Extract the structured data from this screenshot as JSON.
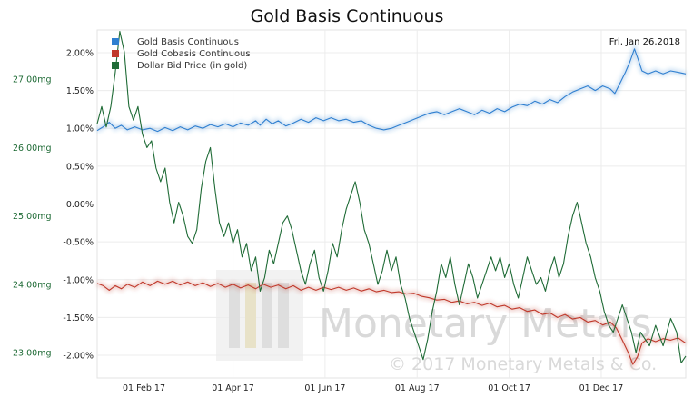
{
  "chart_data": {
    "type": "line",
    "title": "Gold Basis Continuous",
    "date_label": "Fri, Jan 26,2018",
    "watermark": {
      "brand": "Monetary Metals",
      "copyright": "© 2017 Monetary Metals & Co."
    },
    "x_ticks": [
      "01 Feb 17",
      "01 Apr 17",
      "01 Jun 17",
      "01 Aug 17",
      "01 Oct 17",
      "01 Dec 17"
    ],
    "x_tick_days": [
      31,
      90,
      151,
      212,
      273,
      334
    ],
    "x_range": [
      0,
      390
    ],
    "right_axis": {
      "unit": "%",
      "ylim": [
        -2.3,
        2.3
      ],
      "ticks": [
        "2.00%",
        "1.50%",
        "1.00%",
        "0.50%",
        "0.00%",
        "-0.50%",
        "-1.00%",
        "-1.50%",
        "-2.00%"
      ],
      "tick_values": [
        2.0,
        1.5,
        1.0,
        0.5,
        0.0,
        -0.5,
        -1.0,
        -1.5,
        -2.0
      ]
    },
    "left_axis": {
      "unit": "mg",
      "ylim": [
        22.63,
        27.72
      ],
      "ticks": [
        "27.00mg",
        "26.00mg",
        "25.00mg",
        "24.00mg",
        "23.00mg"
      ],
      "tick_values": [
        27.0,
        26.0,
        25.0,
        24.0,
        23.0
      ]
    },
    "legend_position": "top-left",
    "grid": true,
    "series": [
      {
        "name": "Gold Basis Continuous",
        "axis": "right",
        "color": "#2f7fd0",
        "points": [
          [
            0,
            0.97
          ],
          [
            4,
            1.02
          ],
          [
            8,
            1.08
          ],
          [
            12,
            1.0
          ],
          [
            16,
            1.04
          ],
          [
            20,
            0.98
          ],
          [
            25,
            1.02
          ],
          [
            30,
            0.98
          ],
          [
            35,
            1.0
          ],
          [
            40,
            0.96
          ],
          [
            45,
            1.01
          ],
          [
            50,
            0.97
          ],
          [
            55,
            1.02
          ],
          [
            60,
            0.98
          ],
          [
            65,
            1.03
          ],
          [
            70,
            1.0
          ],
          [
            75,
            1.05
          ],
          [
            80,
            1.02
          ],
          [
            85,
            1.06
          ],
          [
            90,
            1.02
          ],
          [
            95,
            1.07
          ],
          [
            100,
            1.04
          ],
          [
            105,
            1.1
          ],
          [
            108,
            1.04
          ],
          [
            112,
            1.12
          ],
          [
            116,
            1.06
          ],
          [
            120,
            1.1
          ],
          [
            125,
            1.03
          ],
          [
            130,
            1.07
          ],
          [
            135,
            1.12
          ],
          [
            140,
            1.08
          ],
          [
            145,
            1.14
          ],
          [
            150,
            1.1
          ],
          [
            155,
            1.14
          ],
          [
            160,
            1.1
          ],
          [
            165,
            1.12
          ],
          [
            170,
            1.08
          ],
          [
            175,
            1.1
          ],
          [
            180,
            1.04
          ],
          [
            185,
            1.0
          ],
          [
            190,
            0.98
          ],
          [
            195,
            1.0
          ],
          [
            200,
            1.04
          ],
          [
            205,
            1.08
          ],
          [
            210,
            1.12
          ],
          [
            215,
            1.16
          ],
          [
            220,
            1.2
          ],
          [
            225,
            1.22
          ],
          [
            230,
            1.18
          ],
          [
            235,
            1.22
          ],
          [
            240,
            1.26
          ],
          [
            245,
            1.22
          ],
          [
            250,
            1.18
          ],
          [
            255,
            1.24
          ],
          [
            260,
            1.2
          ],
          [
            265,
            1.26
          ],
          [
            270,
            1.22
          ],
          [
            275,
            1.28
          ],
          [
            280,
            1.32
          ],
          [
            285,
            1.3
          ],
          [
            290,
            1.36
          ],
          [
            295,
            1.32
          ],
          [
            300,
            1.38
          ],
          [
            305,
            1.34
          ],
          [
            310,
            1.42
          ],
          [
            315,
            1.48
          ],
          [
            320,
            1.52
          ],
          [
            325,
            1.56
          ],
          [
            330,
            1.5
          ],
          [
            335,
            1.56
          ],
          [
            340,
            1.52
          ],
          [
            343,
            1.46
          ],
          [
            347,
            1.62
          ],
          [
            350,
            1.74
          ],
          [
            353,
            1.88
          ],
          [
            356,
            2.05
          ],
          [
            359,
            1.88
          ],
          [
            361,
            1.76
          ],
          [
            365,
            1.72
          ],
          [
            370,
            1.76
          ],
          [
            375,
            1.72
          ],
          [
            380,
            1.76
          ],
          [
            385,
            1.74
          ],
          [
            390,
            1.72
          ]
        ]
      },
      {
        "name": "Gold Cobasis Continuous",
        "axis": "right",
        "color": "#c0392b",
        "points": [
          [
            0,
            -1.05
          ],
          [
            4,
            -1.08
          ],
          [
            8,
            -1.14
          ],
          [
            12,
            -1.08
          ],
          [
            16,
            -1.12
          ],
          [
            20,
            -1.06
          ],
          [
            25,
            -1.1
          ],
          [
            30,
            -1.03
          ],
          [
            35,
            -1.08
          ],
          [
            40,
            -1.02
          ],
          [
            45,
            -1.06
          ],
          [
            50,
            -1.02
          ],
          [
            55,
            -1.07
          ],
          [
            60,
            -1.03
          ],
          [
            65,
            -1.08
          ],
          [
            70,
            -1.04
          ],
          [
            75,
            -1.09
          ],
          [
            80,
            -1.05
          ],
          [
            85,
            -1.1
          ],
          [
            90,
            -1.06
          ],
          [
            95,
            -1.11
          ],
          [
            100,
            -1.07
          ],
          [
            105,
            -1.12
          ],
          [
            110,
            -1.06
          ],
          [
            115,
            -1.1
          ],
          [
            120,
            -1.07
          ],
          [
            125,
            -1.12
          ],
          [
            130,
            -1.08
          ],
          [
            135,
            -1.14
          ],
          [
            140,
            -1.1
          ],
          [
            145,
            -1.14
          ],
          [
            150,
            -1.1
          ],
          [
            155,
            -1.13
          ],
          [
            160,
            -1.1
          ],
          [
            165,
            -1.14
          ],
          [
            170,
            -1.11
          ],
          [
            175,
            -1.15
          ],
          [
            180,
            -1.12
          ],
          [
            185,
            -1.16
          ],
          [
            190,
            -1.14
          ],
          [
            195,
            -1.17
          ],
          [
            200,
            -1.16
          ],
          [
            205,
            -1.19
          ],
          [
            210,
            -1.18
          ],
          [
            215,
            -1.22
          ],
          [
            220,
            -1.24
          ],
          [
            225,
            -1.27
          ],
          [
            230,
            -1.26
          ],
          [
            235,
            -1.3
          ],
          [
            240,
            -1.28
          ],
          [
            245,
            -1.32
          ],
          [
            250,
            -1.3
          ],
          [
            255,
            -1.34
          ],
          [
            260,
            -1.31
          ],
          [
            265,
            -1.36
          ],
          [
            270,
            -1.34
          ],
          [
            275,
            -1.39
          ],
          [
            280,
            -1.37
          ],
          [
            285,
            -1.42
          ],
          [
            290,
            -1.4
          ],
          [
            295,
            -1.46
          ],
          [
            300,
            -1.44
          ],
          [
            305,
            -1.5
          ],
          [
            310,
            -1.46
          ],
          [
            315,
            -1.52
          ],
          [
            320,
            -1.5
          ],
          [
            325,
            -1.56
          ],
          [
            330,
            -1.54
          ],
          [
            335,
            -1.6
          ],
          [
            340,
            -1.56
          ],
          [
            344,
            -1.64
          ],
          [
            348,
            -1.8
          ],
          [
            352,
            -1.97
          ],
          [
            355,
            -2.12
          ],
          [
            358,
            -2.02
          ],
          [
            361,
            -1.84
          ],
          [
            365,
            -1.78
          ],
          [
            370,
            -1.82
          ],
          [
            375,
            -1.78
          ],
          [
            380,
            -1.8
          ],
          [
            385,
            -1.77
          ],
          [
            390,
            -1.84
          ]
        ]
      },
      {
        "name": "Dollar Bid Price (in gold)",
        "axis": "left",
        "color": "#1f6b36",
        "points": [
          [
            0,
            26.35
          ],
          [
            3,
            26.6
          ],
          [
            6,
            26.3
          ],
          [
            9,
            26.6
          ],
          [
            12,
            27.1
          ],
          [
            15,
            27.7
          ],
          [
            18,
            27.4
          ],
          [
            21,
            26.6
          ],
          [
            24,
            26.4
          ],
          [
            27,
            26.6
          ],
          [
            30,
            26.2
          ],
          [
            33,
            26.0
          ],
          [
            36,
            26.1
          ],
          [
            39,
            25.7
          ],
          [
            42,
            25.5
          ],
          [
            45,
            25.7
          ],
          [
            48,
            25.2
          ],
          [
            51,
            24.9
          ],
          [
            54,
            25.2
          ],
          [
            57,
            25.0
          ],
          [
            60,
            24.7
          ],
          [
            63,
            24.6
          ],
          [
            66,
            24.8
          ],
          [
            69,
            25.4
          ],
          [
            72,
            25.8
          ],
          [
            75,
            26.0
          ],
          [
            78,
            25.4
          ],
          [
            81,
            24.9
          ],
          [
            84,
            24.7
          ],
          [
            87,
            24.9
          ],
          [
            90,
            24.6
          ],
          [
            93,
            24.8
          ],
          [
            96,
            24.4
          ],
          [
            99,
            24.6
          ],
          [
            102,
            24.2
          ],
          [
            105,
            24.4
          ],
          [
            108,
            23.9
          ],
          [
            111,
            24.1
          ],
          [
            114,
            24.5
          ],
          [
            117,
            24.3
          ],
          [
            120,
            24.6
          ],
          [
            123,
            24.9
          ],
          [
            126,
            25.0
          ],
          [
            129,
            24.8
          ],
          [
            132,
            24.5
          ],
          [
            135,
            24.2
          ],
          [
            138,
            24.0
          ],
          [
            141,
            24.3
          ],
          [
            144,
            24.5
          ],
          [
            147,
            24.1
          ],
          [
            150,
            23.9
          ],
          [
            153,
            24.2
          ],
          [
            156,
            24.6
          ],
          [
            159,
            24.4
          ],
          [
            162,
            24.8
          ],
          [
            165,
            25.1
          ],
          [
            168,
            25.3
          ],
          [
            171,
            25.5
          ],
          [
            174,
            25.2
          ],
          [
            177,
            24.8
          ],
          [
            180,
            24.6
          ],
          [
            183,
            24.3
          ],
          [
            186,
            24.0
          ],
          [
            189,
            24.2
          ],
          [
            192,
            24.5
          ],
          [
            195,
            24.2
          ],
          [
            198,
            24.4
          ],
          [
            201,
            24.0
          ],
          [
            204,
            23.8
          ],
          [
            207,
            23.5
          ],
          [
            210,
            23.3
          ],
          [
            213,
            23.1
          ],
          [
            216,
            22.9
          ],
          [
            219,
            23.2
          ],
          [
            222,
            23.6
          ],
          [
            225,
            23.9
          ],
          [
            228,
            24.3
          ],
          [
            231,
            24.1
          ],
          [
            234,
            24.4
          ],
          [
            237,
            24.0
          ],
          [
            240,
            23.7
          ],
          [
            243,
            24.0
          ],
          [
            246,
            24.3
          ],
          [
            249,
            24.1
          ],
          [
            252,
            23.8
          ],
          [
            255,
            24.0
          ],
          [
            258,
            24.2
          ],
          [
            261,
            24.4
          ],
          [
            264,
            24.2
          ],
          [
            267,
            24.4
          ],
          [
            270,
            24.1
          ],
          [
            273,
            24.3
          ],
          [
            276,
            24.0
          ],
          [
            279,
            23.8
          ],
          [
            282,
            24.1
          ],
          [
            285,
            24.4
          ],
          [
            288,
            24.2
          ],
          [
            291,
            24.0
          ],
          [
            294,
            24.1
          ],
          [
            297,
            23.9
          ],
          [
            300,
            24.2
          ],
          [
            303,
            24.4
          ],
          [
            306,
            24.1
          ],
          [
            309,
            24.3
          ],
          [
            312,
            24.7
          ],
          [
            315,
            25.0
          ],
          [
            318,
            25.2
          ],
          [
            321,
            24.9
          ],
          [
            324,
            24.6
          ],
          [
            327,
            24.4
          ],
          [
            330,
            24.1
          ],
          [
            333,
            23.9
          ],
          [
            336,
            23.6
          ],
          [
            339,
            23.4
          ],
          [
            342,
            23.3
          ],
          [
            345,
            23.5
          ],
          [
            348,
            23.7
          ],
          [
            351,
            23.5
          ],
          [
            354,
            23.3
          ],
          [
            357,
            23.0
          ],
          [
            360,
            23.3
          ],
          [
            363,
            23.2
          ],
          [
            366,
            23.1
          ],
          [
            370,
            23.4
          ],
          [
            375,
            23.1
          ],
          [
            380,
            23.5
          ],
          [
            384,
            23.3
          ],
          [
            387,
            22.85
          ],
          [
            390,
            22.95
          ]
        ]
      }
    ]
  }
}
